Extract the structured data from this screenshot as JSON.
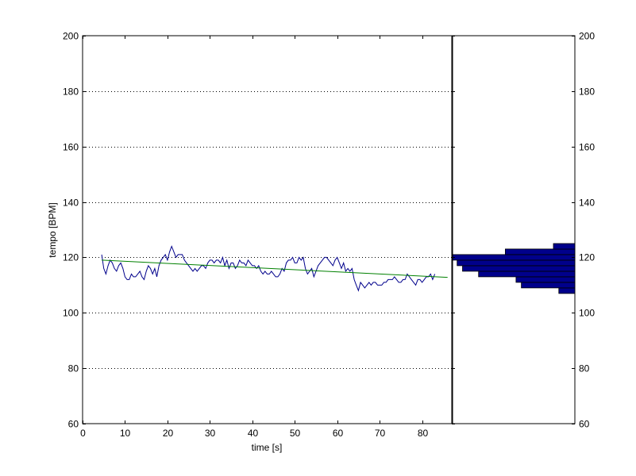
{
  "chart_data": [
    {
      "type": "line",
      "title": "",
      "xlabel": "time [s]",
      "ylabel": "tempo [BPM]",
      "xlim": [
        0,
        87
      ],
      "ylim": [
        60,
        200
      ],
      "grid": "horizontal dotted",
      "x_ticks": [
        0,
        10,
        20,
        30,
        40,
        50,
        60,
        70,
        80
      ],
      "y_ticks": [
        60,
        80,
        100,
        120,
        140,
        160,
        180,
        200
      ],
      "colors": {
        "tempo": "#00008b",
        "trend": "#008000"
      },
      "series": [
        {
          "x": [
            4.5,
            5.0,
            5.5,
            6.0,
            6.5,
            7.0,
            7.5,
            8.0,
            8.5,
            9.0,
            9.5,
            10.0,
            10.5,
            11.0,
            11.5,
            12.0,
            12.5,
            13.0,
            13.5,
            14.0,
            14.5,
            15.0,
            15.5,
            16.0,
            16.5,
            17.0,
            17.5,
            18.0,
            18.5,
            19.0,
            19.5,
            20.0,
            20.5,
            21.0,
            21.5,
            22.0,
            22.5,
            23.0,
            23.5,
            24.0,
            24.5,
            25.0,
            25.5,
            26.0,
            26.5,
            27.0,
            27.5,
            28.0,
            28.5,
            29.0,
            29.5,
            30.0,
            30.5,
            31.0,
            31.5,
            32.0,
            32.5,
            33.0,
            33.5,
            34.0,
            34.5,
            35.0,
            35.5,
            36.0,
            36.5,
            37.0,
            37.5,
            38.0,
            38.5,
            39.0,
            39.5,
            40.0,
            40.5,
            41.0,
            41.5,
            42.0,
            42.5,
            43.0,
            43.5,
            44.0,
            44.5,
            45.0,
            45.5,
            46.0,
            46.5,
            47.0,
            47.5,
            48.0,
            48.5,
            49.0,
            49.5,
            50.0,
            50.5,
            51.0,
            51.5,
            52.0,
            52.5,
            53.0,
            53.5,
            54.0,
            54.5,
            55.0,
            55.5,
            56.0,
            56.5,
            57.0,
            57.5,
            58.0,
            58.5,
            59.0,
            59.5,
            60.0,
            60.5,
            61.0,
            61.5,
            62.0,
            62.5,
            63.0,
            63.5,
            64.0,
            64.5,
            65.0,
            65.5,
            66.0,
            66.5,
            67.0,
            67.5,
            68.0,
            68.5,
            69.0,
            69.5,
            70.0,
            70.5,
            71.0,
            71.5,
            72.0,
            72.5,
            73.0,
            73.5,
            74.0,
            74.5,
            75.0,
            75.5,
            76.0,
            76.5,
            77.0,
            77.5,
            78.0,
            78.5,
            79.0,
            79.5,
            80.0,
            80.5,
            81.0,
            81.5,
            82.0,
            82.5,
            83.0
          ],
          "y": [
            121,
            116,
            114,
            117,
            119,
            118,
            116,
            115,
            117,
            118,
            116,
            113,
            112,
            112,
            114,
            113,
            113,
            114,
            115,
            113,
            112,
            115,
            117,
            116,
            114,
            116,
            113,
            117,
            119,
            120,
            121,
            119,
            122,
            124,
            122,
            120,
            121,
            121,
            121,
            119,
            118,
            117,
            116,
            115,
            116,
            115,
            116,
            117,
            117,
            116,
            118,
            119,
            119,
            118,
            119,
            119,
            118,
            120,
            117,
            119,
            116,
            118,
            118,
            116,
            117,
            119,
            118,
            118,
            117,
            119,
            118,
            117,
            117,
            116,
            117,
            115,
            114,
            115,
            114,
            114,
            115,
            114,
            113,
            113,
            114,
            116,
            115,
            118,
            119,
            119,
            120,
            118,
            118,
            120,
            119,
            120,
            116,
            114,
            115,
            116,
            113,
            115,
            117,
            118,
            119,
            120,
            120,
            119,
            118,
            117,
            119,
            120,
            118,
            116,
            118,
            115,
            116,
            115,
            116,
            112,
            110,
            108,
            111,
            110,
            109,
            110,
            111,
            110,
            111,
            111,
            110,
            110,
            110,
            111,
            111,
            112,
            112,
            112,
            113,
            112,
            111,
            111,
            112,
            112,
            114,
            113,
            112,
            111,
            110,
            112,
            112,
            111,
            112,
            113,
            113,
            114,
            112,
            114
          ]
        },
        {
          "x": [
            4.5,
            86
          ],
          "y": [
            119,
            112.8
          ]
        }
      ]
    },
    {
      "type": "bar",
      "orientation": "horizontal",
      "title": "",
      "ylim": [
        60,
        200
      ],
      "y_ticks": [
        60,
        80,
        100,
        120,
        140,
        160,
        180,
        200
      ],
      "colors": {
        "bars": "#00008b"
      },
      "series": [
        {
          "bin_bottoms": [
            107,
            109,
            111,
            113,
            115,
            117,
            119,
            121,
            123
          ],
          "values": [
            3,
            10,
            11,
            18,
            21,
            22,
            23,
            13,
            4
          ],
          "max_value": 23
        }
      ]
    }
  ]
}
